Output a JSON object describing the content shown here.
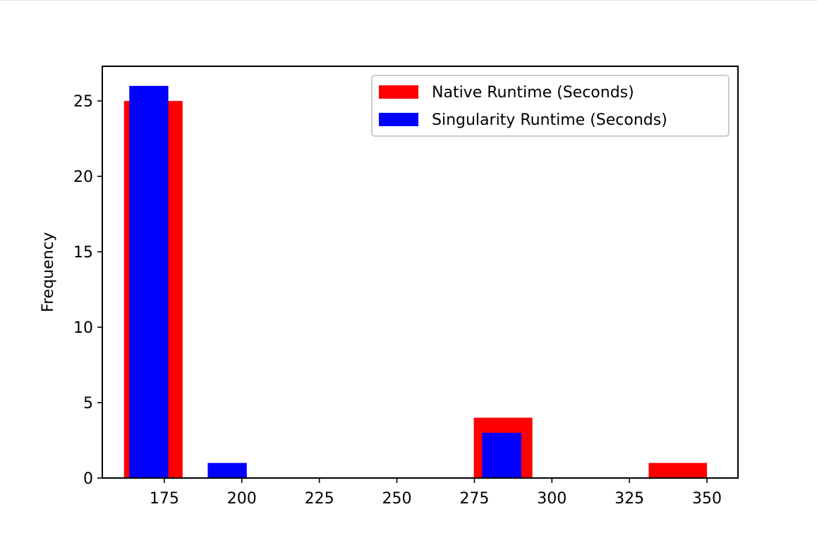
{
  "chart_data": {
    "type": "bar",
    "title": "",
    "xlabel": "",
    "ylabel": "Frequency",
    "xlim": [
      155,
      360
    ],
    "ylim": [
      0,
      27.3
    ],
    "xticks": [
      175,
      200,
      225,
      250,
      275,
      300,
      325,
      350
    ],
    "yticks": [
      0,
      5,
      10,
      15,
      20,
      25
    ],
    "grid": false,
    "legend_position": "upper right",
    "series": [
      {
        "name": "Native Runtime (Seconds)",
        "color": "#ff0000",
        "bins": [
          {
            "start": 162.0,
            "end": 180.9,
            "value": 25
          },
          {
            "start": 274.8,
            "end": 293.7,
            "value": 4
          },
          {
            "start": 331.2,
            "end": 350.0,
            "value": 1
          }
        ]
      },
      {
        "name": "Singularity Runtime (Seconds)",
        "color": "#0000ff",
        "bins": [
          {
            "start": 163.7,
            "end": 176.3,
            "value": 26
          },
          {
            "start": 189.0,
            "end": 201.6,
            "value": 1
          },
          {
            "start": 277.5,
            "end": 290.1,
            "value": 3
          }
        ]
      }
    ]
  }
}
